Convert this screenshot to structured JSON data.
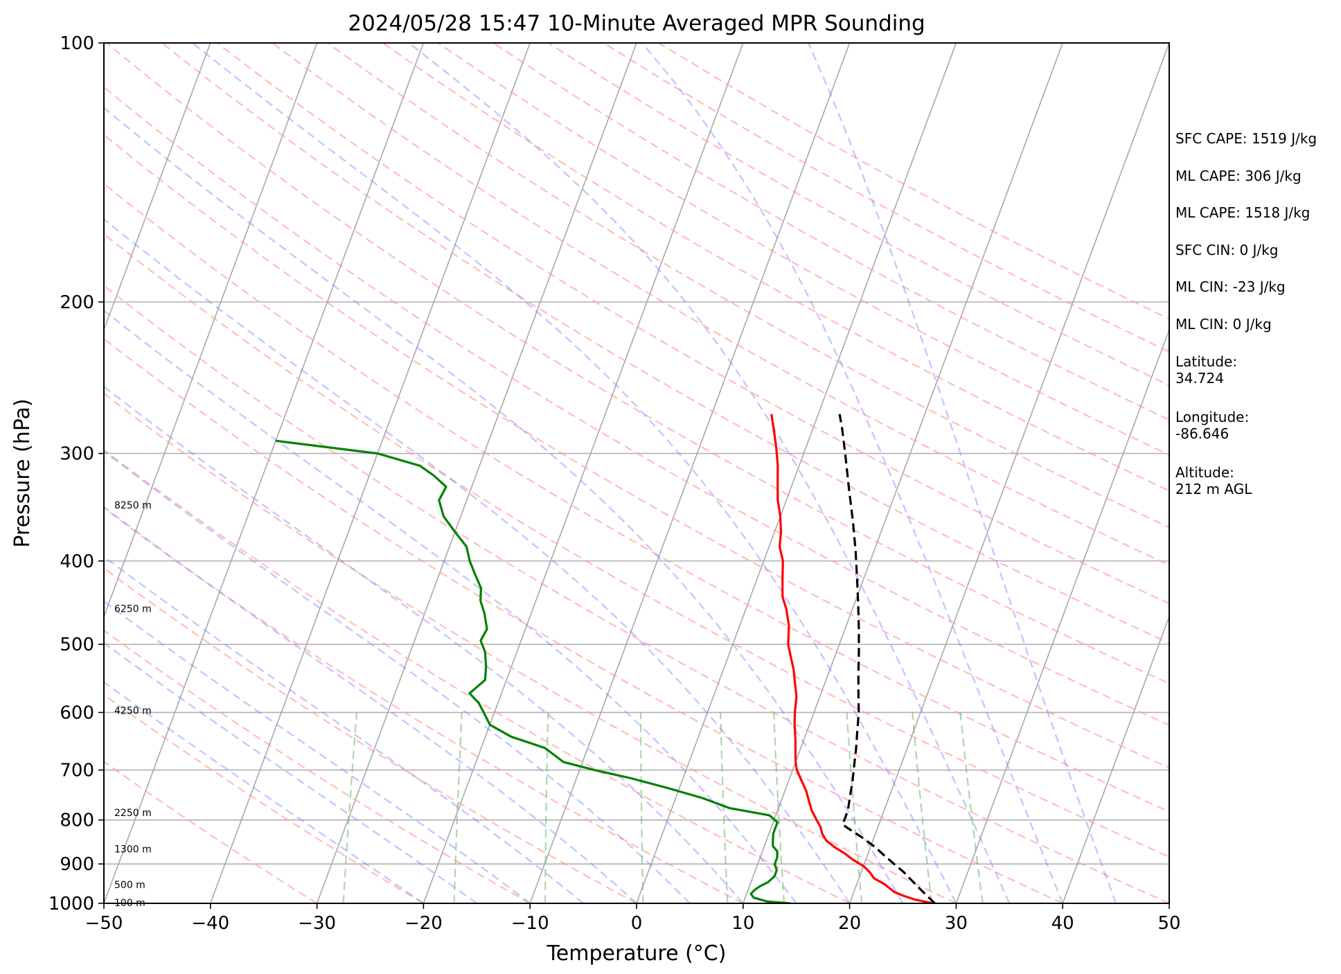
{
  "chart_data": {
    "type": "skew-t",
    "title": "2024/05/28 15:47 10-Minute Averaged MPR Sounding",
    "xlabel": "Temperature (°C)",
    "ylabel": "Pressure (hPa)",
    "xlim": [
      -50,
      50
    ],
    "ylim": [
      1000,
      100
    ],
    "y_scale": "log",
    "grid": true,
    "x_ticks": [
      "−50",
      "−40",
      "−30",
      "−20",
      "−10",
      "0",
      "10",
      "20",
      "30",
      "40",
      "50"
    ],
    "x_tick_values": [
      -50,
      -40,
      -30,
      -20,
      -10,
      0,
      10,
      20,
      30,
      40,
      50
    ],
    "y_ticks": [
      "100",
      "200",
      "300",
      "400",
      "500",
      "600",
      "700",
      "800",
      "900",
      "1000"
    ],
    "y_tick_values": [
      100,
      200,
      300,
      400,
      500,
      600,
      700,
      800,
      900,
      1000
    ],
    "altitude_labels": [
      {
        "text": "8250 m",
        "p": 345
      },
      {
        "text": "6250 m",
        "p": 455
      },
      {
        "text": "4250 m",
        "p": 598
      },
      {
        "text": "2250 m",
        "p": 786
      },
      {
        "text": "1300 m",
        "p": 866
      },
      {
        "text": "500 m",
        "p": 953
      },
      {
        "text": "100 m",
        "p": 1000
      }
    ],
    "series": [
      {
        "style": "temperature",
        "color": "#ff0000",
        "points": [
          [
            1000,
            27.8
          ],
          [
            990,
            26.0
          ],
          [
            980,
            24.8
          ],
          [
            970,
            23.8
          ],
          [
            960,
            23.2
          ],
          [
            950,
            22.6
          ],
          [
            935,
            21.4
          ],
          [
            920,
            20.8
          ],
          [
            905,
            20.0
          ],
          [
            890,
            18.8
          ],
          [
            875,
            17.8
          ],
          [
            860,
            16.6
          ],
          [
            845,
            15.6
          ],
          [
            830,
            15.0
          ],
          [
            815,
            14.6
          ],
          [
            800,
            14.0
          ],
          [
            780,
            13.2
          ],
          [
            760,
            12.6
          ],
          [
            740,
            12.0
          ],
          [
            720,
            11.2
          ],
          [
            700,
            10.4
          ],
          [
            685,
            10.0
          ],
          [
            665,
            9.6
          ],
          [
            645,
            9.2
          ],
          [
            620,
            8.6
          ],
          [
            600,
            8.2
          ],
          [
            575,
            7.8
          ],
          [
            555,
            7.2
          ],
          [
            535,
            6.6
          ],
          [
            515,
            5.8
          ],
          [
            500,
            5.2
          ],
          [
            475,
            4.6
          ],
          [
            455,
            3.8
          ],
          [
            440,
            3.0
          ],
          [
            420,
            2.4
          ],
          [
            400,
            1.8
          ],
          [
            385,
            1.0
          ],
          [
            370,
            0.6
          ],
          [
            355,
            0.0
          ],
          [
            340,
            -0.8
          ],
          [
            325,
            -1.4
          ],
          [
            310,
            -2.0
          ],
          [
            295,
            -2.8
          ],
          [
            282,
            -3.6
          ],
          [
            270,
            -4.4
          ]
        ]
      },
      {
        "style": "dewpoint",
        "color": "#008000",
        "points": [
          [
            1000,
            14.4
          ],
          [
            995,
            12.2
          ],
          [
            985,
            10.8
          ],
          [
            975,
            10.4
          ],
          [
            965,
            10.6
          ],
          [
            955,
            11.0
          ],
          [
            945,
            11.6
          ],
          [
            930,
            12.0
          ],
          [
            915,
            12.0
          ],
          [
            900,
            11.6
          ],
          [
            885,
            11.6
          ],
          [
            870,
            11.4
          ],
          [
            858,
            10.8
          ],
          [
            845,
            10.6
          ],
          [
            830,
            10.4
          ],
          [
            818,
            10.4
          ],
          [
            805,
            10.4
          ],
          [
            790,
            9.4
          ],
          [
            775,
            5.4
          ],
          [
            755,
            2.6
          ],
          [
            735,
            -1.0
          ],
          [
            715,
            -5.0
          ],
          [
            700,
            -8.6
          ],
          [
            685,
            -11.8
          ],
          [
            660,
            -14.0
          ],
          [
            640,
            -17.6
          ],
          [
            620,
            -20.0
          ],
          [
            600,
            -21.0
          ],
          [
            585,
            -21.8
          ],
          [
            570,
            -23.0
          ],
          [
            550,
            -22.0
          ],
          [
            530,
            -22.4
          ],
          [
            510,
            -23.0
          ],
          [
            495,
            -23.8
          ],
          [
            480,
            -23.6
          ],
          [
            460,
            -24.4
          ],
          [
            445,
            -25.2
          ],
          [
            430,
            -25.6
          ],
          [
            415,
            -26.6
          ],
          [
            400,
            -27.6
          ],
          [
            385,
            -28.4
          ],
          [
            370,
            -30.0
          ],
          [
            355,
            -31.6
          ],
          [
            340,
            -32.6
          ],
          [
            328,
            -32.4
          ],
          [
            318,
            -34.0
          ],
          [
            310,
            -35.6
          ],
          [
            300,
            -40.0
          ],
          [
            290,
            -50.0
          ]
        ]
      },
      {
        "style": "parcel",
        "color": "#000000",
        "points": [
          [
            1000,
            28.0
          ],
          [
            980,
            27.0
          ],
          [
            960,
            26.0
          ],
          [
            940,
            25.0
          ],
          [
            920,
            24.0
          ],
          [
            900,
            22.8
          ],
          [
            880,
            21.6
          ],
          [
            860,
            20.4
          ],
          [
            840,
            19.0
          ],
          [
            820,
            17.4
          ],
          [
            810,
            16.6
          ],
          [
            780,
            16.6
          ],
          [
            750,
            16.3
          ],
          [
            720,
            16.0
          ],
          [
            690,
            15.6
          ],
          [
            660,
            15.2
          ],
          [
            630,
            14.7
          ],
          [
            600,
            14.2
          ],
          [
            570,
            13.5
          ],
          [
            540,
            12.8
          ],
          [
            510,
            12.1
          ],
          [
            480,
            11.3
          ],
          [
            450,
            10.4
          ],
          [
            420,
            9.4
          ],
          [
            390,
            8.3
          ],
          [
            360,
            7.0
          ],
          [
            330,
            5.5
          ],
          [
            300,
            3.9
          ],
          [
            280,
            2.7
          ],
          [
            270,
            2.0
          ]
        ]
      }
    ]
  },
  "info": {
    "sfc_cape": "SFC CAPE: 1519 J/kg",
    "ml_cape_1": "ML CAPE: 306 J/kg",
    "ml_cape_2": "ML CAPE: 1518 J/kg",
    "sfc_cin": "SFC CIN: 0 J/kg",
    "ml_cin_1": "ML CIN: -23 J/kg",
    "ml_cin_2": "ML CIN: 0 J/kg",
    "latitude": "Latitude:\n34.724",
    "longitude": "Longitude:\n-86.646",
    "altitude": "Altitude:\n212 m AGL"
  }
}
